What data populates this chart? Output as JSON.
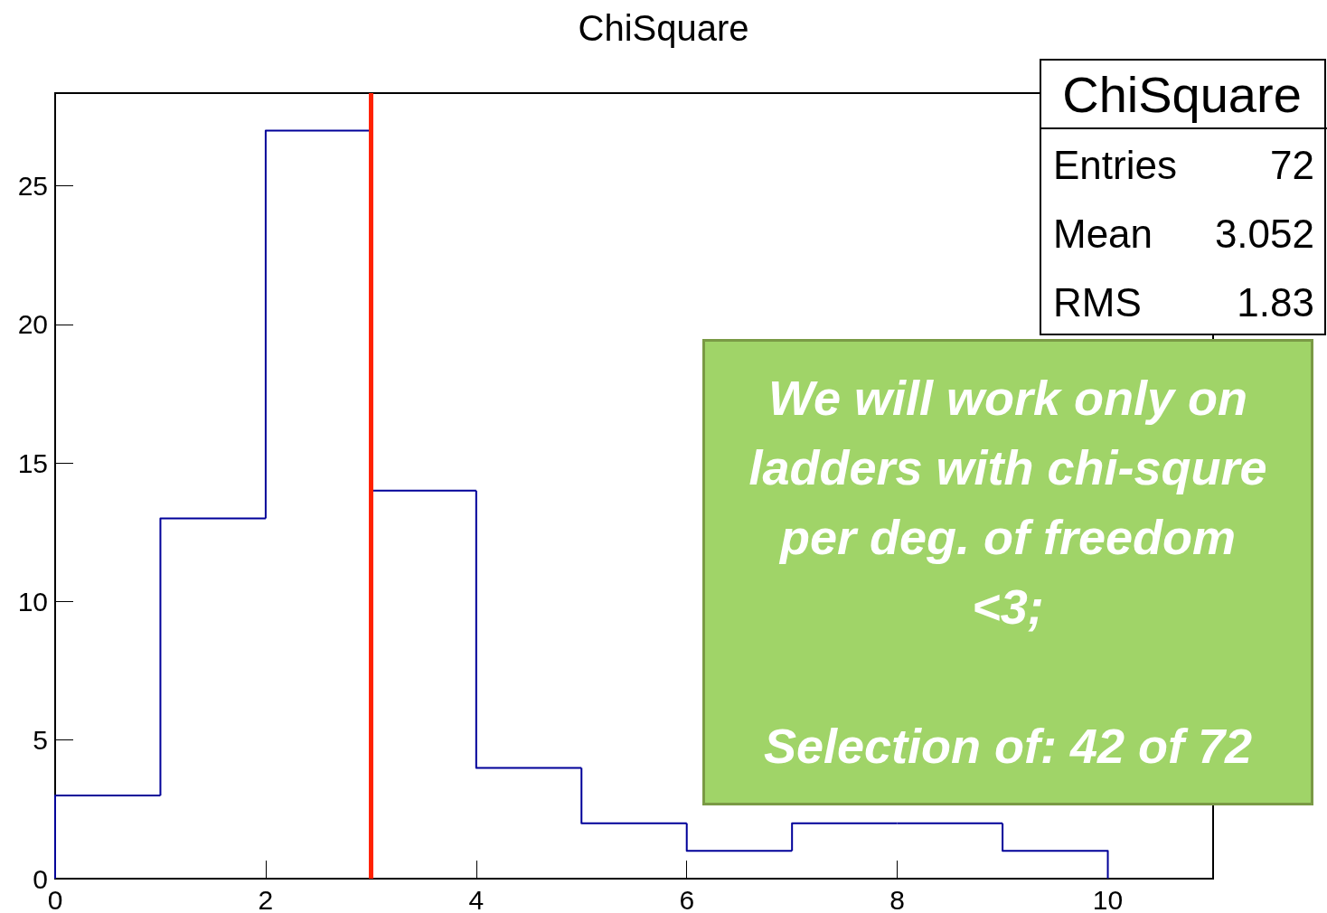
{
  "chart_data": {
    "type": "histogram",
    "title": "ChiSquare",
    "bins": [
      0,
      1,
      2,
      3,
      4,
      5,
      6,
      7,
      8,
      9,
      10
    ],
    "values": [
      3,
      13,
      27,
      14,
      4,
      2,
      1,
      2,
      2,
      1
    ],
    "color": "#000099",
    "xlim": [
      0,
      11
    ],
    "xticks": [
      0,
      2,
      4,
      6,
      8,
      10
    ],
    "ylim": [
      0,
      28.35
    ],
    "yticks": [
      0,
      5,
      10,
      15,
      20,
      25
    ],
    "grid": false,
    "ref_lines": [
      {
        "axis": "x",
        "value": 3,
        "color": "#ff2200"
      }
    ],
    "annotations": [
      "ChiSquare",
      "Entries",
      "72",
      "Mean",
      "3.052",
      "RMS",
      "1.83",
      "We will work only on ladders with chi-squre per deg. of freedom <3;\n\nSelection of: 42 of 72"
    ]
  }
}
